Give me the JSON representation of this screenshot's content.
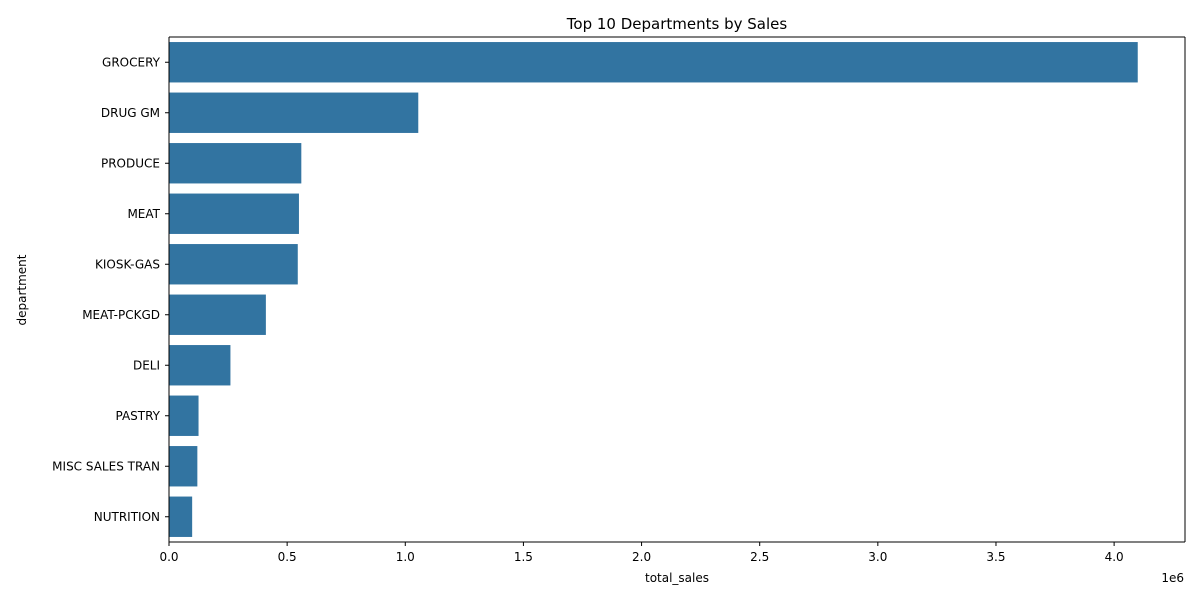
{
  "chart_data": {
    "type": "bar",
    "orientation": "horizontal",
    "title": "Top 10 Departments by Sales",
    "xlabel": "total_sales",
    "ylabel": "department",
    "x_offset_label": "1e6",
    "x_scale_factor": 1000000,
    "xlim": [
      0,
      4.3
    ],
    "x_ticks": [
      0,
      0.5,
      1.0,
      1.5,
      2.0,
      2.5,
      3.0,
      3.5,
      4.0
    ],
    "x_tick_labels": [
      "0.0",
      "0.5",
      "1.0",
      "1.5",
      "2.0",
      "2.5",
      "3.0",
      "3.5",
      "4.0"
    ],
    "grid": false,
    "categories": [
      "GROCERY",
      "DRUG GM",
      "PRODUCE",
      "MEAT",
      "KIOSK-GAS",
      "MEAT-PCKGD",
      "DELI",
      "PASTRY",
      "MISC SALES TRAN",
      "NUTRITION"
    ],
    "values": [
      4.1,
      1.055,
      0.56,
      0.55,
      0.545,
      0.41,
      0.26,
      0.125,
      0.12,
      0.098
    ],
    "bar_color": "#3274a1"
  }
}
